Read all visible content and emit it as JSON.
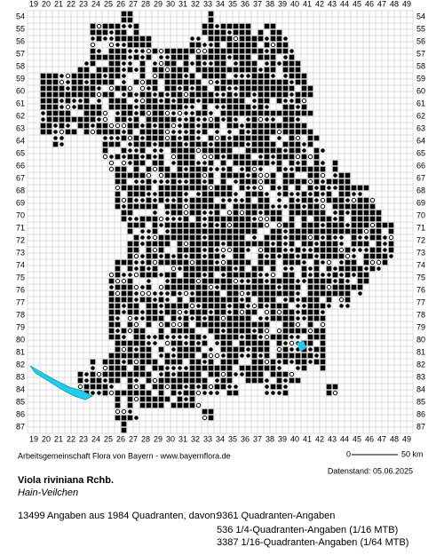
{
  "map": {
    "col_labels": [
      19,
      20,
      21,
      22,
      23,
      24,
      25,
      26,
      27,
      28,
      29,
      30,
      31,
      32,
      33,
      34,
      35,
      36,
      37,
      38,
      39,
      40,
      41,
      42,
      43,
      44,
      45,
      46,
      47,
      48,
      49
    ],
    "row_labels": [
      54,
      55,
      56,
      57,
      58,
      59,
      60,
      61,
      62,
      63,
      64,
      65,
      66,
      67,
      68,
      69,
      70,
      71,
      72,
      73,
      74,
      75,
      76,
      77,
      78,
      79,
      80,
      81,
      82,
      83,
      84,
      85,
      86,
      87
    ]
  },
  "footer": {
    "credit": "Arbeitsgemeinschaft Flora von Bayern - www.bayernflora.de",
    "scale_start": "0",
    "scale_end": "50 km",
    "date": "Datenstand: 05.06.2025"
  },
  "species": {
    "name": "Viola riviniana Rchb.",
    "common_name": "Hain-Veilchen"
  },
  "stats": {
    "summary": "13499 Angaben aus 1984 Quadranten, davon:",
    "lines": [
      "9361 Quadranten-Angaben",
      "536 1/4-Quadranten-Angaben (1/16 MTB)",
      "3387 1/16-Quadranten-Angaben (1/64 MTB)"
    ]
  }
}
